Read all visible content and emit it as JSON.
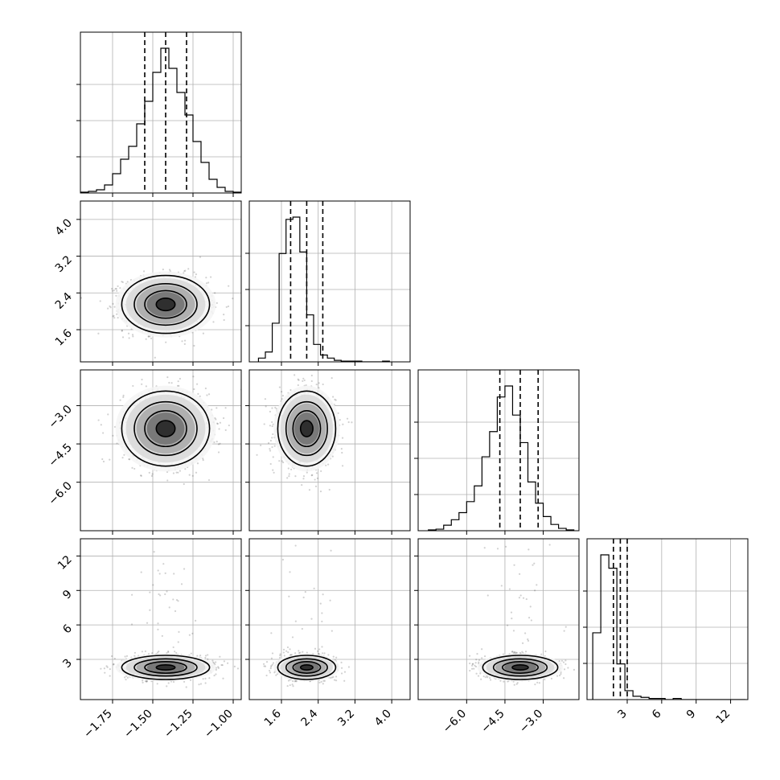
{
  "chart_data": {
    "type": "corner",
    "parameters": [
      {
        "index": 0,
        "range": [
          -1.95,
          -0.95
        ],
        "ticks": [
          -1.75,
          -1.5,
          -1.25,
          -1.0
        ],
        "tick_labels": [
          "−1.75",
          "−1.50",
          "−1.25",
          "−1.00"
        ],
        "quantiles": [
          -1.55,
          -1.42,
          -1.29
        ],
        "center": -1.42,
        "spread": 0.13
      },
      {
        "index": 1,
        "range": [
          0.9,
          4.4
        ],
        "ticks": [
          1.6,
          2.4,
          3.2,
          4.0
        ],
        "tick_labels": [
          "1.6",
          "2.4",
          "3.2",
          "4.0"
        ],
        "quantiles": [
          1.8,
          2.15,
          2.5
        ],
        "center": 2.15,
        "spread": 0.3
      },
      {
        "index": 2,
        "range": [
          -7.9,
          -1.6
        ],
        "ticks": [
          -6.0,
          -4.5,
          -3.0
        ],
        "tick_labels": [
          "−6.0",
          "−4.5",
          "−3.0"
        ],
        "quantiles": [
          -4.7,
          -3.9,
          -3.2
        ],
        "center": -3.9,
        "spread": 0.7
      },
      {
        "index": 3,
        "range": [
          -0.5,
          13.5
        ],
        "ticks": [
          3,
          6,
          9,
          12
        ],
        "tick_labels": [
          "3",
          "6",
          "9",
          "12"
        ],
        "quantiles": [
          1.8,
          2.4,
          3.0
        ],
        "center": 2.3,
        "spread": 0.5
      }
    ],
    "histograms": [
      {
        "param": 0,
        "bins": [
          -1.95,
          -1.9,
          -1.85,
          -1.8,
          -1.75,
          -1.7,
          -1.65,
          -1.6,
          -1.55,
          -1.5,
          -1.45,
          -1.4,
          -1.35,
          -1.3,
          -1.25,
          -1.2,
          -1.15,
          -1.1,
          -1.05,
          -1.0,
          -0.95
        ],
        "counts": [
          1,
          2,
          4,
          10,
          24,
          42,
          58,
          86,
          114,
          150,
          180,
          155,
          125,
          97,
          64,
          38,
          17,
          7,
          2,
          1
        ]
      },
      {
        "param": 1,
        "bins": [
          1.1,
          1.25,
          1.4,
          1.55,
          1.7,
          1.85,
          2.0,
          2.15,
          2.3,
          2.45,
          2.6,
          2.75,
          2.9,
          3.05,
          3.2,
          3.35,
          3.5,
          3.65,
          3.8,
          3.95
        ],
        "counts": [
          5,
          13,
          51,
          143,
          188,
          191,
          145,
          62,
          23,
          9,
          5,
          2,
          1,
          1,
          1,
          0,
          0,
          0,
          1
        ]
      },
      {
        "param": 2,
        "bins": [
          -7.5,
          -7.2,
          -6.9,
          -6.6,
          -6.3,
          -6.0,
          -5.7,
          -5.4,
          -5.1,
          -4.8,
          -4.5,
          -4.2,
          -3.9,
          -3.6,
          -3.3,
          -3.0,
          -2.7,
          -2.4,
          -2.1,
          -1.8
        ],
        "counts": [
          1,
          2,
          7,
          14,
          23,
          37,
          57,
          94,
          126,
          170,
          184,
          147,
          112,
          62,
          35,
          18,
          8,
          3,
          1
        ]
      },
      {
        "param": 3,
        "bins": [
          0.0,
          0.7,
          1.4,
          2.1,
          2.8,
          3.5,
          4.2,
          4.9,
          5.6,
          6.3,
          7.0,
          7.7,
          8.4,
          9.1,
          9.8,
          10.5,
          11.2,
          11.9,
          12.6,
          13.3
        ],
        "counts": [
          60,
          130,
          118,
          32,
          8,
          3,
          2,
          1,
          1,
          0,
          1,
          0,
          0,
          0,
          0,
          0,
          0,
          0,
          0
        ]
      }
    ],
    "correlation": "none visible",
    "grid": true,
    "quantile_lines": "dashed",
    "title": "",
    "xlabel": "",
    "ylabel": ""
  }
}
